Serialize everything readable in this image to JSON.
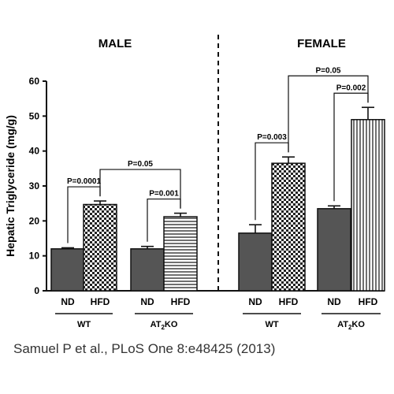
{
  "chart_data": {
    "type": "bar",
    "ylabel": "Hepatic Triglyceride (mg/g)",
    "ylim": [
      0,
      60
    ],
    "yticks": [
      0,
      10,
      20,
      30,
      40,
      50,
      60
    ],
    "panels": [
      {
        "title": "MALE",
        "groups": [
          {
            "label": "WT",
            "bars": [
              {
                "category": "ND",
                "value": 12,
                "error": 0.3,
                "pattern": "solid"
              },
              {
                "category": "HFD",
                "value": 24.7,
                "error": 1.0,
                "pattern": "checker"
              }
            ]
          },
          {
            "label": "AT2KO",
            "label_main": "AT",
            "label_sub": "2",
            "label_tail": "KO",
            "bars": [
              {
                "category": "ND",
                "value": 12,
                "error": 0.7,
                "pattern": "solid"
              },
              {
                "category": "HFD",
                "value": 21.2,
                "error": 1.0,
                "pattern": "hlines"
              }
            ]
          }
        ],
        "comparisons": [
          {
            "label": "P=0.0001",
            "from": [
              0,
              0
            ],
            "to": [
              0,
              1
            ]
          },
          {
            "label": "P=0.001",
            "from": [
              1,
              0
            ],
            "to": [
              1,
              1
            ]
          },
          {
            "label": "P=0.05",
            "from": [
              0,
              1
            ],
            "to": [
              1,
              1
            ]
          }
        ]
      },
      {
        "title": "FEMALE",
        "groups": [
          {
            "label": "WT",
            "bars": [
              {
                "category": "ND",
                "value": 16.5,
                "error": 2.4,
                "pattern": "solid"
              },
              {
                "category": "HFD",
                "value": 36.5,
                "error": 1.8,
                "pattern": "checker"
              }
            ]
          },
          {
            "label": "AT2KO",
            "label_main": "AT",
            "label_sub": "2",
            "label_tail": "KO",
            "bars": [
              {
                "category": "ND",
                "value": 23.5,
                "error": 0.8,
                "pattern": "solid"
              },
              {
                "category": "HFD",
                "value": 49,
                "error": 3.5,
                "pattern": "vlines"
              }
            ]
          }
        ],
        "comparisons": [
          {
            "label": "P=0.003",
            "from": [
              0,
              0
            ],
            "to": [
              0,
              1
            ]
          },
          {
            "label": "P=0.002",
            "from": [
              1,
              0
            ],
            "to": [
              1,
              1
            ]
          },
          {
            "label": "P=0.05",
            "from": [
              0,
              1
            ],
            "to": [
              1,
              1
            ]
          }
        ]
      }
    ],
    "colors": {
      "solid": "#555555",
      "line": "#111111"
    }
  },
  "citation": "Samuel P et al., PLoS One 8:e48425 (2013)"
}
